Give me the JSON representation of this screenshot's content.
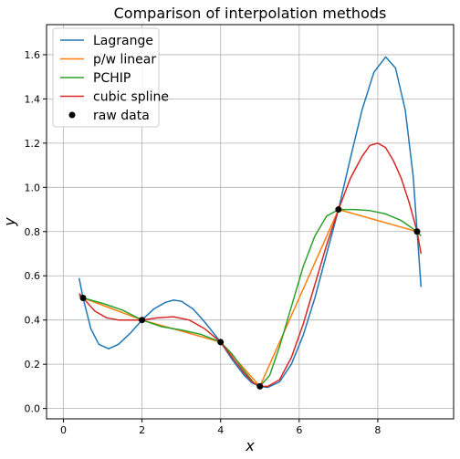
{
  "chart_data": {
    "type": "line",
    "title": "Comparison of interpolation methods",
    "xlabel": "x",
    "ylabel": "y",
    "xlim": [
      -0.43,
      9.93
    ],
    "ylim": [
      -0.047,
      1.736
    ],
    "xticks": [
      0,
      2,
      4,
      6,
      8
    ],
    "yticks": [
      0.0,
      0.2,
      0.4,
      0.6,
      0.8,
      1.0,
      1.2,
      1.4,
      1.6
    ],
    "grid": true,
    "legend_position": "top-left",
    "raw_data": {
      "name": "raw data",
      "color": "#000000",
      "x": [
        0.5,
        2,
        4,
        5,
        7,
        9
      ],
      "y": [
        0.5,
        0.4,
        0.3,
        0.1,
        0.9,
        0.8
      ]
    },
    "series": [
      {
        "name": "Lagrange",
        "color": "#1f77b4",
        "x": [
          0.4,
          0.5,
          0.7,
          0.9,
          1.15,
          1.4,
          1.7,
          2.0,
          2.3,
          2.6,
          2.8,
          3.0,
          3.3,
          3.6,
          4.0,
          4.3,
          4.6,
          4.8,
          5.0,
          5.2,
          5.5,
          5.8,
          6.1,
          6.4,
          6.7,
          7.0,
          7.3,
          7.6,
          7.9,
          8.2,
          8.45,
          8.7,
          8.9,
          9.1
        ],
        "y": [
          0.59,
          0.5,
          0.36,
          0.29,
          0.27,
          0.29,
          0.34,
          0.4,
          0.45,
          0.48,
          0.49,
          0.485,
          0.45,
          0.39,
          0.3,
          0.22,
          0.15,
          0.115,
          0.1,
          0.095,
          0.12,
          0.2,
          0.33,
          0.5,
          0.7,
          0.9,
          1.13,
          1.35,
          1.52,
          1.59,
          1.54,
          1.35,
          1.05,
          0.55
        ]
      },
      {
        "name": "p/w linear",
        "color": "#ff7f0e",
        "x": [
          0.5,
          2,
          4,
          5,
          7,
          9
        ],
        "y": [
          0.5,
          0.4,
          0.3,
          0.1,
          0.9,
          0.8
        ]
      },
      {
        "name": "PCHIP",
        "color": "#2ca02c",
        "x": [
          0.4,
          0.5,
          1.0,
          1.5,
          2.0,
          2.5,
          3.0,
          3.5,
          4.0,
          4.3,
          4.6,
          4.85,
          5.0,
          5.25,
          5.5,
          5.8,
          6.1,
          6.4,
          6.7,
          7.0,
          7.4,
          7.8,
          8.2,
          8.6,
          9.0,
          9.1
        ],
        "y": [
          0.51,
          0.5,
          0.475,
          0.445,
          0.4,
          0.37,
          0.355,
          0.335,
          0.3,
          0.245,
          0.17,
          0.115,
          0.1,
          0.15,
          0.28,
          0.46,
          0.64,
          0.78,
          0.87,
          0.9,
          0.9,
          0.895,
          0.88,
          0.85,
          0.8,
          0.78
        ]
      },
      {
        "name": "cubic spline",
        "color": "#d62728",
        "x": [
          0.4,
          0.5,
          0.8,
          1.1,
          1.4,
          1.7,
          2.0,
          2.4,
          2.8,
          3.2,
          3.6,
          4.0,
          4.3,
          4.6,
          4.8,
          5.0,
          5.2,
          5.5,
          5.8,
          6.1,
          6.4,
          6.7,
          7.0,
          7.3,
          7.6,
          7.8,
          8.0,
          8.2,
          8.4,
          8.6,
          8.8,
          9.0,
          9.1
        ],
        "y": [
          0.52,
          0.5,
          0.44,
          0.41,
          0.4,
          0.4,
          0.4,
          0.41,
          0.415,
          0.4,
          0.36,
          0.3,
          0.23,
          0.16,
          0.12,
          0.1,
          0.1,
          0.13,
          0.23,
          0.38,
          0.56,
          0.74,
          0.9,
          1.04,
          1.14,
          1.19,
          1.2,
          1.18,
          1.12,
          1.04,
          0.93,
          0.8,
          0.7
        ]
      }
    ]
  }
}
